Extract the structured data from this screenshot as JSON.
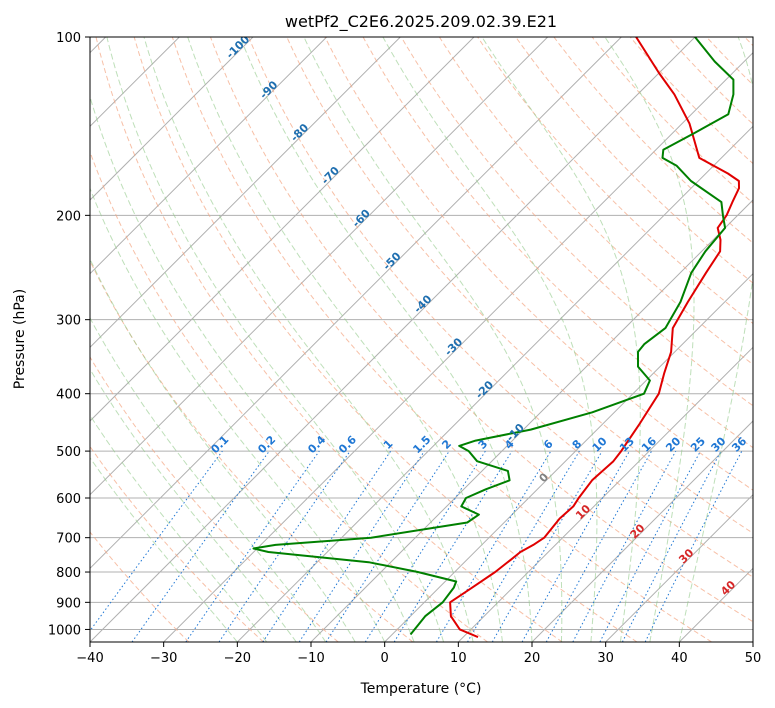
{
  "chart_data": {
    "type": "line",
    "subtype": "skew-t log-p",
    "title": "wetPf2_C2E6.2025.209.02.39.E21",
    "xlabel": "Temperature (°C)",
    "ylabel": "Pressure (hPa)",
    "xlim": [
      -40,
      50
    ],
    "ylim": [
      1050,
      100
    ],
    "y_scale": "log",
    "grid": true,
    "x_ticks": [
      -40,
      -30,
      -20,
      -10,
      0,
      10,
      20,
      30,
      40,
      50
    ],
    "x_tick_labels": [
      "−40",
      "−30",
      "−20",
      "−10",
      "0",
      "10",
      "20",
      "30",
      "40",
      "50"
    ],
    "y_ticks": [
      100,
      200,
      300,
      400,
      500,
      600,
      700,
      800,
      900,
      1000
    ],
    "y_tick_labels": [
      "100",
      "200",
      "300",
      "400",
      "500",
      "600",
      "700",
      "800",
      "900",
      "1000"
    ],
    "isotherms": [
      -100,
      -90,
      -80,
      -70,
      -60,
      -50,
      -40,
      -30,
      -20,
      -10,
      0,
      10,
      20,
      30,
      40
    ],
    "isotherm_labels": [
      "-100",
      "-90",
      "-80",
      "-70",
      "-60",
      "-50",
      "-40",
      "-30",
      "-20",
      "-10",
      "0",
      "10",
      "20",
      "30",
      "40"
    ],
    "mixing_ratios": [
      0.1,
      0.2,
      0.4,
      0.6,
      1,
      1.5,
      2,
      3,
      4,
      6,
      8,
      10,
      13,
      16,
      20,
      25,
      30,
      36
    ],
    "mixing_ratio_labels": [
      "0.1",
      "0.2",
      "0.4",
      "0.6",
      "1",
      "1.5",
      "2",
      "3",
      "4",
      "6",
      "8",
      "10",
      "13",
      "16",
      "20",
      "25",
      "30",
      "36"
    ],
    "colors": {
      "temperature": "#e00000",
      "dewpoint": "#008000",
      "isotherm": "#b0b0b0",
      "dry_adiabat": "#f4a582",
      "moist_adiabat": "#92c98a",
      "mixing_ratio": "#1f77d4",
      "isotherm_label_cold": "#1f6fb0",
      "isotherm_label_warm": "#d62728",
      "isotherm_label_zero": "#808080"
    },
    "series": [
      {
        "name": "",
        "role": "temperature",
        "points": [
          [
            1030,
            12.0
          ],
          [
            1000,
            8.5
          ],
          [
            950,
            5.5
          ],
          [
            900,
            3.5
          ],
          [
            850,
            4.5
          ],
          [
            800,
            5.5
          ],
          [
            760,
            6.0
          ],
          [
            740,
            6.2
          ],
          [
            720,
            7.0
          ],
          [
            700,
            7.5
          ],
          [
            650,
            7.0
          ],
          [
            620,
            7.2
          ],
          [
            600,
            6.8
          ],
          [
            560,
            6.2
          ],
          [
            520,
            6.5
          ],
          [
            500,
            6.2
          ],
          [
            450,
            5.0
          ],
          [
            400,
            3.5
          ],
          [
            370,
            1.5
          ],
          [
            340,
            -0.5
          ],
          [
            310,
            -3.5
          ],
          [
            280,
            -5.0
          ],
          [
            250,
            -6.5
          ],
          [
            230,
            -7.5
          ],
          [
            220,
            -9.0
          ],
          [
            210,
            -11.0
          ],
          [
            200,
            -11.5
          ],
          [
            190,
            -12.5
          ],
          [
            180,
            -13.5
          ],
          [
            175,
            -14.5
          ],
          [
            170,
            -17.0
          ],
          [
            160,
            -23.0
          ],
          [
            140,
            -29.0
          ],
          [
            125,
            -35.0
          ],
          [
            115,
            -40.0
          ],
          [
            100,
            -48.0
          ]
        ]
      },
      {
        "name": "",
        "role": "dewpoint",
        "points": [
          [
            1020,
            2.5
          ],
          [
            950,
            2.0
          ],
          [
            900,
            2.5
          ],
          [
            850,
            2.0
          ],
          [
            830,
            1.5
          ],
          [
            800,
            -5.0
          ],
          [
            770,
            -13.0
          ],
          [
            740,
            -28.0
          ],
          [
            730,
            -30.5
          ],
          [
            720,
            -28.0
          ],
          [
            700,
            -16.0
          ],
          [
            660,
            -5.0
          ],
          [
            640,
            -4.5
          ],
          [
            620,
            -8.0
          ],
          [
            600,
            -8.5
          ],
          [
            580,
            -7.0
          ],
          [
            560,
            -5.0
          ],
          [
            540,
            -6.5
          ],
          [
            520,
            -12.0
          ],
          [
            500,
            -14.5
          ],
          [
            490,
            -16.5
          ],
          [
            480,
            -15.0
          ],
          [
            460,
            -9.0
          ],
          [
            430,
            -3.0
          ],
          [
            400,
            1.5
          ],
          [
            380,
            0.5
          ],
          [
            360,
            -3.0
          ],
          [
            340,
            -5.0
          ],
          [
            330,
            -5.2
          ],
          [
            310,
            -4.5
          ],
          [
            280,
            -6.0
          ],
          [
            250,
            -8.5
          ],
          [
            230,
            -9.5
          ],
          [
            210,
            -10.0
          ],
          [
            200,
            -12.0
          ],
          [
            190,
            -14.0
          ],
          [
            175,
            -21.0
          ],
          [
            165,
            -25.0
          ],
          [
            160,
            -28.0
          ],
          [
            155,
            -29.0
          ],
          [
            145,
            -27.0
          ],
          [
            135,
            -25.0
          ],
          [
            125,
            -27.0
          ],
          [
            118,
            -29.0
          ],
          [
            110,
            -34.0
          ],
          [
            100,
            -40.0
          ]
        ]
      }
    ]
  }
}
